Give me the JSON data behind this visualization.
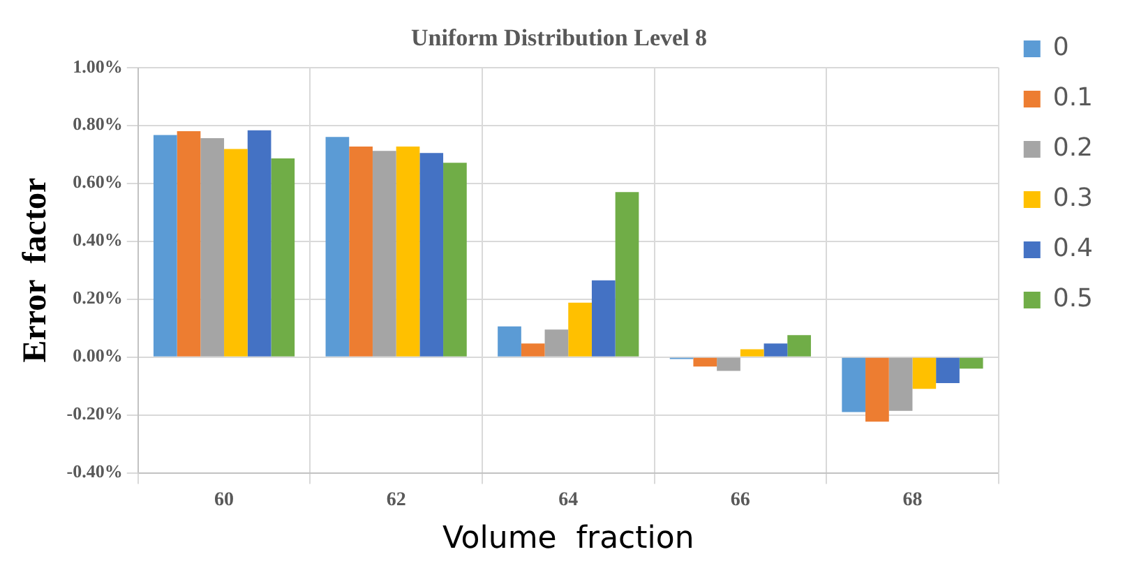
{
  "chart_data": {
    "type": "bar",
    "title": "Uniform Distribution Level 8",
    "xlabel": "Volume  fraction",
    "ylabel": "Error  factor",
    "categories": [
      "60",
      "62",
      "64",
      "66",
      "68"
    ],
    "series": [
      {
        "name": "0",
        "color": "#5b9bd5",
        "values": [
          0.767,
          0.76,
          0.106,
          -0.007,
          -0.19
        ]
      },
      {
        "name": "0.1",
        "color": "#ed7d31",
        "values": [
          0.78,
          0.727,
          0.047,
          -0.033,
          -0.223
        ]
      },
      {
        "name": "0.2",
        "color": "#a5a5a5",
        "values": [
          0.756,
          0.712,
          0.095,
          -0.048,
          -0.186
        ]
      },
      {
        "name": "0.3",
        "color": "#ffc000",
        "values": [
          0.719,
          0.727,
          0.188,
          0.027,
          -0.11
        ]
      },
      {
        "name": "0.4",
        "color": "#4472c4",
        "values": [
          0.783,
          0.705,
          0.265,
          0.047,
          -0.09
        ]
      },
      {
        "name": "0.5",
        "color": "#70ad47",
        "values": [
          0.686,
          0.671,
          0.57,
          0.076,
          -0.04
        ]
      }
    ],
    "ylim": [
      -0.4,
      1.0
    ],
    "yticks": [
      {
        "value": -0.4,
        "label": "-0.40%"
      },
      {
        "value": -0.2,
        "label": "-0.20%"
      },
      {
        "value": 0,
        "label": "0.00%"
      },
      {
        "value": 0.2,
        "label": "0.20%"
      },
      {
        "value": 0.4,
        "label": "0.40%"
      },
      {
        "value": 0.6,
        "label": "0.60%"
      },
      {
        "value": 0.8,
        "label": "0.80%"
      },
      {
        "value": 1.0,
        "label": "1.00%"
      }
    ],
    "grid": true,
    "legend": "right"
  }
}
